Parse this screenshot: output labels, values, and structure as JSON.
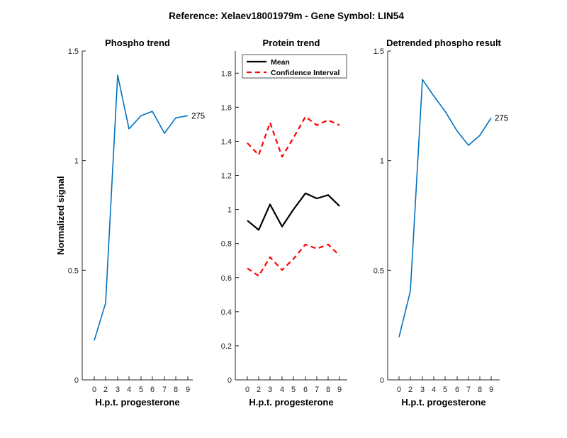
{
  "figure": {
    "suptitle": "Reference:  Xelaev18001979m - Gene Symbol:  LIN54"
  },
  "colors": {
    "series_blue": "#0072BD",
    "mean_black": "#000000",
    "ci_red": "#FF0000",
    "axis": "#262626"
  },
  "chart_data": [
    {
      "type": "line",
      "title": "Phospho trend",
      "xlabel": "H.p.t. progesterone",
      "ylabel": "Normalized signal",
      "x": [
        0,
        2,
        3,
        4,
        5,
        6,
        7,
        8,
        9
      ],
      "xticklabels": [
        "0",
        "2",
        "3",
        "4",
        "5",
        "6",
        "7",
        "8",
        "9"
      ],
      "ylim": [
        0,
        1.5
      ],
      "yticks": [
        0,
        0.5,
        1,
        1.5
      ],
      "yticklabels": [
        "0",
        "0.5",
        "1",
        "1.5"
      ],
      "grid": false,
      "series": [
        {
          "values": [
            0.18,
            0.35,
            1.39,
            1.145,
            1.205,
            1.225,
            1.125,
            1.195,
            1.205
          ]
        }
      ],
      "annotation": "275"
    },
    {
      "type": "line",
      "title": "Protein trend",
      "xlabel": "H.p.t. progesterone",
      "x": [
        0,
        2,
        3,
        4,
        5,
        6,
        7,
        8,
        9
      ],
      "xticklabels": [
        "0",
        "2",
        "3",
        "4",
        "5",
        "6",
        "7",
        "8",
        "9"
      ],
      "ylim": [
        0,
        1.93
      ],
      "yticks": [
        0,
        0.2,
        0.4,
        0.6,
        0.8,
        1,
        1.2,
        1.4,
        1.6,
        1.8
      ],
      "yticklabels": [
        "0",
        "0.2",
        "0.4",
        "0.6",
        "0.8",
        "1",
        "1.2",
        "1.4",
        "1.6",
        "1.8"
      ],
      "grid": false,
      "legend_position": "top-left",
      "series": [
        {
          "name": "Mean",
          "values": [
            0.935,
            0.88,
            1.03,
            0.9,
            1.0,
            1.095,
            1.065,
            1.085,
            1.02
          ]
        },
        {
          "name": "Confidence Interval",
          "values": [
            1.39,
            1.32,
            1.51,
            1.31,
            1.42,
            1.545,
            1.495,
            1.525,
            1.495
          ]
        },
        {
          "values": [
            0.655,
            0.61,
            0.72,
            0.645,
            0.71,
            0.795,
            0.77,
            0.795,
            0.73
          ]
        }
      ]
    },
    {
      "type": "line",
      "title": "Detrended phospho result",
      "xlabel": "H.p.t. progesterone",
      "x": [
        0,
        2,
        3,
        4,
        5,
        6,
        7,
        8,
        9
      ],
      "xticklabels": [
        "0",
        "2",
        "3",
        "4",
        "5",
        "6",
        "7",
        "8",
        "9"
      ],
      "ylim": [
        0,
        1.5
      ],
      "yticks": [
        0,
        0.5,
        1,
        1.5
      ],
      "yticklabels": [
        "0",
        "0.5",
        "1",
        "1.5"
      ],
      "grid": false,
      "series": [
        {
          "values": [
            0.195,
            0.405,
            1.37,
            1.295,
            1.225,
            1.135,
            1.07,
            1.115,
            1.195
          ]
        }
      ],
      "annotation": "275"
    }
  ]
}
